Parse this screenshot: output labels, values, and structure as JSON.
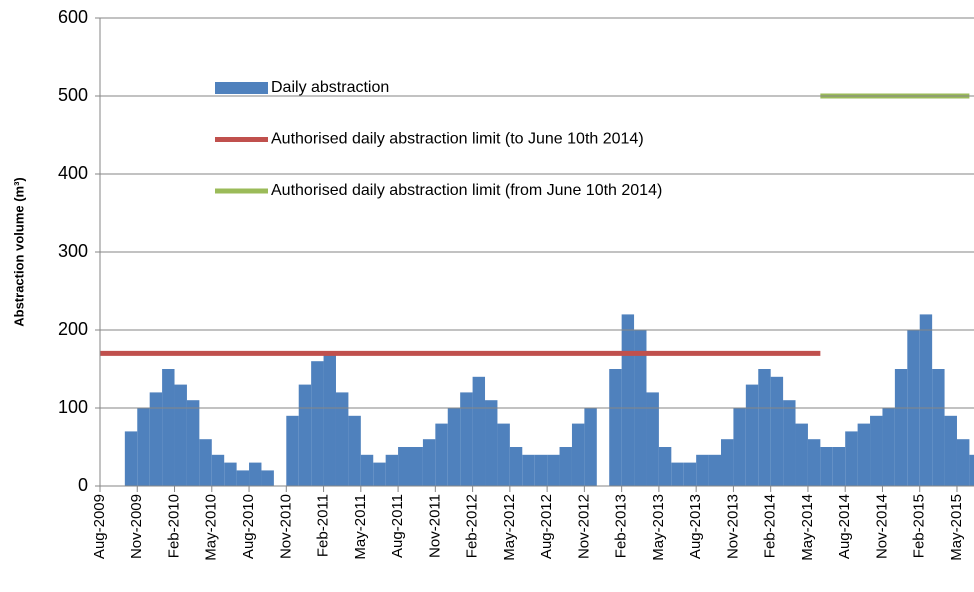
{
  "chart_data": {
    "type": "bar",
    "y_label": "Abstraction volume (m³)",
    "ylim": [
      0,
      600
    ],
    "yticks": [
      0,
      100,
      200,
      300,
      400,
      500,
      600
    ],
    "grid": true,
    "legend": "upper-left",
    "categories": [
      "Aug-2009",
      null,
      null,
      "Nov-2009",
      null,
      null,
      "Feb-2010",
      null,
      null,
      "May-2010",
      null,
      null,
      "Aug-2010",
      null,
      null,
      "Nov-2010",
      null,
      null,
      "Feb-2011",
      null,
      null,
      "May-2011",
      null,
      null,
      "Aug-2011",
      null,
      null,
      "Nov-2011",
      null,
      null,
      "Feb-2012",
      null,
      null,
      "May-2012",
      null,
      null,
      "Aug-2012",
      null,
      null,
      "Nov-2012",
      null,
      null,
      "Feb-2013",
      null,
      null,
      "May-2013",
      null,
      null,
      "Aug-2013",
      null,
      null,
      "Nov-2013",
      null,
      null,
      "Feb-2014",
      null,
      null,
      "May-2014",
      null,
      null,
      "Aug-2014",
      null,
      null,
      "Nov-2014",
      null,
      null,
      "Feb-2015",
      null,
      null,
      "May-2015",
      null
    ],
    "series": [
      {
        "name": "Daily abstraction",
        "type": "bar",
        "color": "#4f81bd",
        "values": [
          0,
          0,
          70,
          100,
          120,
          150,
          130,
          110,
          60,
          40,
          30,
          20,
          30,
          20,
          0,
          90,
          130,
          160,
          170,
          120,
          90,
          40,
          30,
          40,
          50,
          50,
          60,
          80,
          100,
          120,
          140,
          110,
          80,
          50,
          40,
          40,
          40,
          50,
          80,
          100,
          0,
          150,
          220,
          200,
          120,
          50,
          30,
          30,
          40,
          40,
          60,
          100,
          130,
          150,
          140,
          110,
          80,
          60,
          50,
          50,
          70,
          80,
          90,
          100,
          150,
          200,
          220,
          150,
          90,
          60,
          40
        ]
      },
      {
        "name": "Authorised daily abstraction limit (to June 10th 2014)",
        "type": "line",
        "color": "#c0504d",
        "values": [
          170,
          170,
          170,
          170,
          170,
          170,
          170,
          170,
          170,
          170,
          170,
          170,
          170,
          170,
          170,
          170,
          170,
          170,
          170,
          170,
          170,
          170,
          170,
          170,
          170,
          170,
          170,
          170,
          170,
          170,
          170,
          170,
          170,
          170,
          170,
          170,
          170,
          170,
          170,
          170,
          170,
          170,
          170,
          170,
          170,
          170,
          170,
          170,
          170,
          170,
          170,
          170,
          170,
          170,
          170,
          170,
          170,
          170,
          170,
          null,
          null,
          null,
          null,
          null,
          null,
          null,
          null,
          null,
          null,
          null,
          null
        ]
      },
      {
        "name": "Authorised daily abstraction limit (from June 10th 2014)",
        "type": "line",
        "color": "#9bbb59",
        "values": [
          null,
          null,
          null,
          null,
          null,
          null,
          null,
          null,
          null,
          null,
          null,
          null,
          null,
          null,
          null,
          null,
          null,
          null,
          null,
          null,
          null,
          null,
          null,
          null,
          null,
          null,
          null,
          null,
          null,
          null,
          null,
          null,
          null,
          null,
          null,
          null,
          null,
          null,
          null,
          null,
          null,
          null,
          null,
          null,
          null,
          null,
          null,
          null,
          null,
          null,
          null,
          null,
          null,
          null,
          null,
          null,
          null,
          null,
          500,
          500,
          500,
          500,
          500,
          500,
          500,
          500,
          500,
          500,
          500,
          500,
          500
        ]
      }
    ]
  }
}
